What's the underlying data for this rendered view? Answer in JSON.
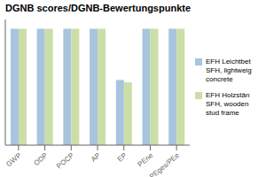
{
  "chart_data": {
    "type": "bar",
    "title": "DGNB scores/DGNB-Bewertungspunkte",
    "categories": [
      "GWP",
      "ODP",
      "POCP",
      "AP",
      "EP",
      "PEne",
      "PEges/PEe"
    ],
    "series": [
      {
        "name": "EFH Leichtbet\nSFH, lightweig\nconcrete",
        "color": "#a8c4de",
        "values": [
          1.0,
          1.0,
          1.0,
          1.0,
          0.56,
          1.0,
          1.0
        ]
      },
      {
        "name": "EFH Holzstän\nSFH, wooden\nstud frame",
        "color": "#ccdea8",
        "values": [
          1.0,
          1.0,
          1.0,
          1.0,
          0.54,
          1.0,
          1.0
        ]
      }
    ],
    "ylim": [
      0,
      1.08
    ],
    "grid": false,
    "legend": "right",
    "tick_labels": "x"
  }
}
